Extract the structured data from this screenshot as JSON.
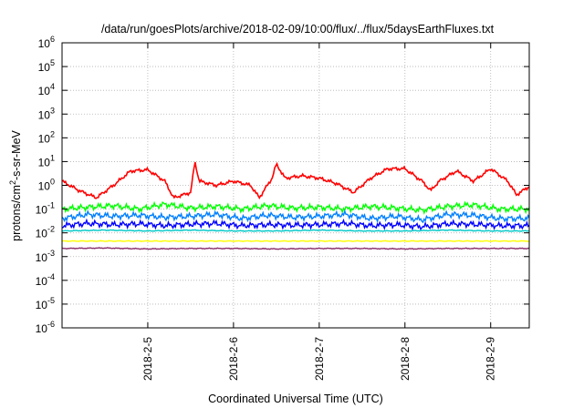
{
  "chart_data": {
    "type": "line",
    "title": "/data/run/goesPlots/archive/2018-02-09/10:00/flux/../flux/5daysEarthFluxes.txt",
    "xlabel": "Coordinated Universal Time (UTC)",
    "ylabel": "protons/cm²-s-sr-MeV",
    "ylabel_parts": [
      "protons/cm",
      "2",
      "-s-sr-MeV"
    ],
    "yscale": "log",
    "ylim": [
      1e-06,
      1000000.0
    ],
    "xlim": [
      4.0,
      9.45
    ],
    "x_unit": "day of Feb 2018",
    "grid": true,
    "y_ticks": [
      {
        "base": "10",
        "exp": "-6",
        "value": 1e-06
      },
      {
        "base": "10",
        "exp": "-5",
        "value": 1e-05
      },
      {
        "base": "10",
        "exp": "-4",
        "value": 0.0001
      },
      {
        "base": "10",
        "exp": "-3",
        "value": 0.001
      },
      {
        "base": "10",
        "exp": "-2",
        "value": 0.01
      },
      {
        "base": "10",
        "exp": "-1",
        "value": 0.1
      },
      {
        "base": "10",
        "exp": "0",
        "value": 1
      },
      {
        "base": "10",
        "exp": "1",
        "value": 10
      },
      {
        "base": "10",
        "exp": "2",
        "value": 100
      },
      {
        "base": "10",
        "exp": "3",
        "value": 1000
      },
      {
        "base": "10",
        "exp": "4",
        "value": 10000
      },
      {
        "base": "10",
        "exp": "5",
        "value": 100000
      },
      {
        "base": "10",
        "exp": "6",
        "value": 1000000
      }
    ],
    "x_ticks": [
      {
        "label": "2018-2-5",
        "value": 5
      },
      {
        "label": "2018-2-6",
        "value": 6
      },
      {
        "label": "2018-2-7",
        "value": 7
      },
      {
        "label": "2018-2-8",
        "value": 8
      },
      {
        "label": "2018-2-9",
        "value": 9
      }
    ],
    "series": [
      {
        "color": "#ff0000",
        "x": [
          4.0,
          4.2,
          4.4,
          4.6,
          4.8,
          5.0,
          5.2,
          5.3,
          5.5,
          5.55,
          5.6,
          5.8,
          6.0,
          6.2,
          6.3,
          6.45,
          6.5,
          6.6,
          6.8,
          7.0,
          7.2,
          7.4,
          7.6,
          7.8,
          8.0,
          8.2,
          8.3,
          8.4,
          8.6,
          8.8,
          9.0,
          9.2,
          9.3,
          9.45
        ],
        "values": [
          1.5,
          0.6,
          0.3,
          1.0,
          4.0,
          4.5,
          1.5,
          0.3,
          0.5,
          10,
          1.5,
          1.0,
          1.5,
          1.0,
          0.3,
          2.0,
          8.0,
          2.0,
          2.5,
          2.0,
          1.2,
          0.5,
          2.0,
          5.0,
          5.0,
          1.5,
          0.6,
          1.5,
          4.0,
          1.5,
          5.0,
          1.5,
          0.4,
          0.9
        ]
      },
      {
        "color": "#00ff00",
        "x": [
          4.0,
          4.3,
          4.6,
          4.9,
          5.2,
          5.5,
          5.8,
          6.1,
          6.4,
          6.7,
          7.0,
          7.3,
          7.6,
          7.9,
          8.2,
          8.5,
          8.8,
          9.1,
          9.45
        ],
        "values": [
          0.1,
          0.12,
          0.14,
          0.1,
          0.16,
          0.11,
          0.13,
          0.1,
          0.14,
          0.11,
          0.12,
          0.1,
          0.13,
          0.11,
          0.09,
          0.13,
          0.15,
          0.1,
          0.1
        ]
      },
      {
        "color": "#0080ff",
        "x": [
          4.0,
          4.3,
          4.6,
          4.9,
          5.2,
          5.5,
          5.8,
          6.1,
          6.4,
          6.7,
          7.0,
          7.3,
          7.6,
          7.9,
          8.2,
          8.5,
          8.8,
          9.1,
          9.45
        ],
        "values": [
          0.04,
          0.06,
          0.05,
          0.055,
          0.045,
          0.05,
          0.06,
          0.04,
          0.055,
          0.045,
          0.05,
          0.06,
          0.04,
          0.05,
          0.035,
          0.06,
          0.055,
          0.04,
          0.04
        ]
      },
      {
        "color": "#0000ff",
        "x": [
          4.0,
          4.3,
          4.6,
          4.9,
          5.2,
          5.5,
          5.8,
          6.1,
          6.4,
          6.7,
          7.0,
          7.3,
          7.6,
          7.9,
          8.2,
          8.5,
          8.8,
          9.1,
          9.45
        ],
        "values": [
          0.02,
          0.025,
          0.022,
          0.024,
          0.02,
          0.023,
          0.025,
          0.02,
          0.022,
          0.021,
          0.022,
          0.025,
          0.02,
          0.022,
          0.018,
          0.024,
          0.023,
          0.02,
          0.02
        ]
      },
      {
        "color": "#00c8c8",
        "x": [
          4.0,
          4.5,
          5.0,
          5.5,
          6.0,
          6.5,
          7.0,
          7.5,
          8.0,
          8.5,
          9.0,
          9.45
        ],
        "values": [
          0.012,
          0.013,
          0.012,
          0.013,
          0.012,
          0.012,
          0.013,
          0.012,
          0.012,
          0.013,
          0.012,
          0.012
        ]
      },
      {
        "color": "#ffff00",
        "x": [
          4.0,
          4.5,
          5.0,
          5.5,
          6.0,
          6.5,
          7.0,
          7.5,
          8.0,
          8.5,
          9.0,
          9.45
        ],
        "values": [
          0.0045,
          0.0045,
          0.0045,
          0.0045,
          0.0045,
          0.0045,
          0.0045,
          0.0045,
          0.0045,
          0.0045,
          0.0045,
          0.0045
        ]
      },
      {
        "color": "#8b2f6b",
        "x": [
          4.0,
          4.5,
          5.0,
          5.5,
          6.0,
          6.5,
          7.0,
          7.5,
          8.0,
          8.5,
          9.0,
          9.45
        ],
        "values": [
          0.0022,
          0.0023,
          0.0021,
          0.0022,
          0.0022,
          0.0021,
          0.0022,
          0.0022,
          0.0021,
          0.0022,
          0.0022,
          0.0022
        ]
      }
    ]
  }
}
